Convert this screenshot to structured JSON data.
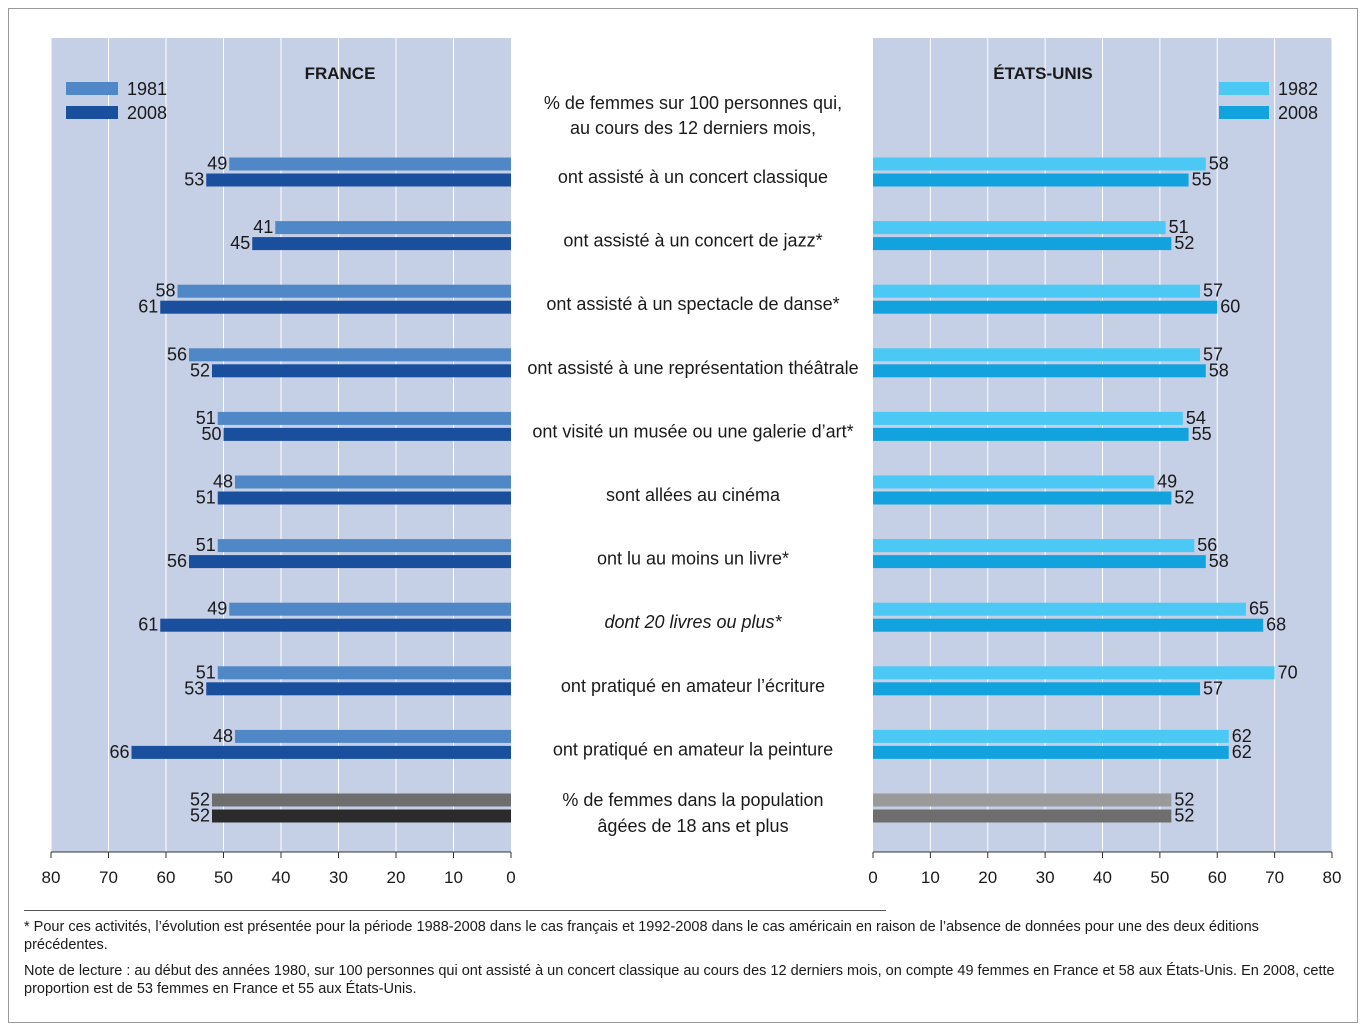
{
  "chart_data": {
    "type": "bar",
    "header_lines": [
      "% de femmes sur 100 personnes qui,",
      "au cours des 12 derniers mois,"
    ],
    "categories": [
      "ont assisté à un concert classique",
      "ont assisté à un concert de jazz*",
      "ont assisté à un spectacle de danse*",
      "ont assisté à une représentation théâtrale",
      "ont visité un musée ou une galerie d’art*",
      "sont allées au cinéma",
      "ont lu au moins un livre*",
      "dont 20 livres ou plus*",
      "ont pratiqué en amateur l’écriture",
      "ont pratiqué en amateur la peinture",
      "% de femmes dans la population|âgées de 18 ans et plus"
    ],
    "italic_category_index": 7,
    "xlim": [
      0,
      80
    ],
    "xticks": [
      0,
      10,
      20,
      30,
      40,
      50,
      60,
      70,
      80
    ],
    "panels": [
      {
        "title": "FRANCE",
        "side": "left",
        "series": [
          {
            "name": "1981",
            "color": "#5087c7",
            "values": [
              49,
              41,
              58,
              56,
              51,
              48,
              51,
              49,
              51,
              48,
              52
            ],
            "last_color": "#6e6e6e"
          },
          {
            "name": "2008",
            "color": "#1a4f9e",
            "values": [
              53,
              45,
              61,
              52,
              50,
              51,
              56,
              61,
              53,
              66,
              52
            ],
            "last_color": "#2b2b2b"
          }
        ]
      },
      {
        "title": "ÉTATS-UNIS",
        "side": "right",
        "series": [
          {
            "name": "1982",
            "color": "#4cc8f4",
            "values": [
              58,
              51,
              57,
              57,
              54,
              49,
              56,
              65,
              70,
              62,
              52
            ],
            "last_color": "#9a9a9a"
          },
          {
            "name": "2008",
            "color": "#12a3df",
            "values": [
              55,
              52,
              60,
              58,
              55,
              52,
              58,
              68,
              57,
              62,
              52
            ],
            "last_color": "#6e6e6e"
          }
        ]
      }
    ],
    "panel_bg": "#c5cfe6",
    "grid": true
  },
  "notes": {
    "footnote": "* Pour ces activités, l’évolution est présentée pour la période 1988-2008 dans le cas français et 1992-2008 dans le cas américain en raison de l’absence de données pour une des deux éditions précédentes.",
    "reading_note": "Note de lecture : au début des années 1980, sur 100 personnes qui ont assisté à un concert classique au cours des 12 derniers mois, on compte 49 femmes en France et 58 aux États-Unis. En 2008, cette proportion est de 53 femmes en France et 55 aux États-Unis."
  }
}
